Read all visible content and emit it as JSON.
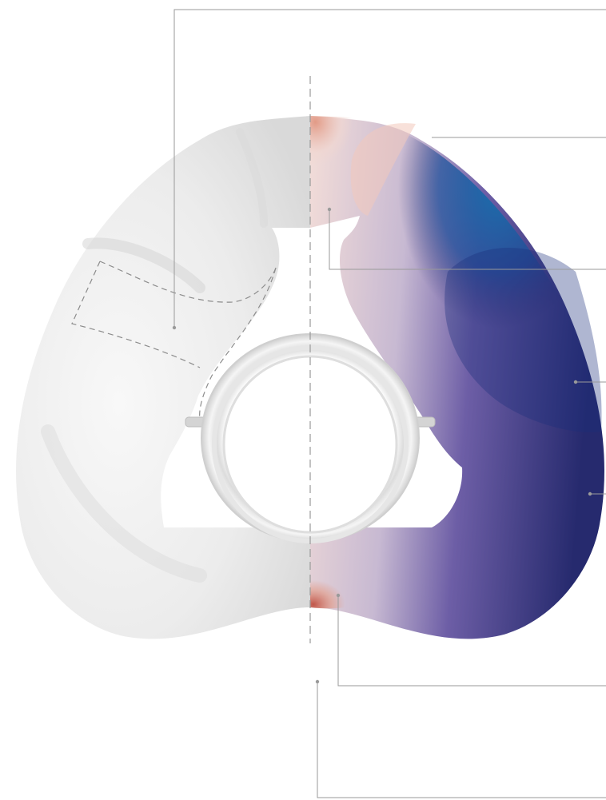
{
  "diagram": {
    "subject": "mask-cushion-cross-section",
    "left_half": "plain-silicone-view",
    "right_half": "gradient-zoning-view",
    "colors": {
      "background": "#ffffff",
      "silicone_light": "#f4f4f4",
      "silicone_mid": "#e2e2e2",
      "silicone_dark": "#cfcfcf",
      "deep_blue": "#262a6e",
      "bright_blue": "#1670ad",
      "purple": "#7a6aa8",
      "pale_pink": "#f0d6d0",
      "salmon": "#e29a86",
      "brick_red": "#c0564a",
      "leader_line": "#9a9a9a",
      "dashed_outline": "#8c8c8c"
    },
    "callouts": [
      {
        "id": "outer-wall-callout",
        "side": "left"
      },
      {
        "id": "top-bridge-callout",
        "side": "right"
      },
      {
        "id": "inner-nasal-callout",
        "side": "right"
      },
      {
        "id": "side-cheek-callout",
        "side": "right"
      },
      {
        "id": "lower-side-callout",
        "side": "right"
      },
      {
        "id": "bottom-lip-callout",
        "side": "right"
      },
      {
        "id": "center-axis-callout",
        "side": "bottom"
      }
    ]
  }
}
